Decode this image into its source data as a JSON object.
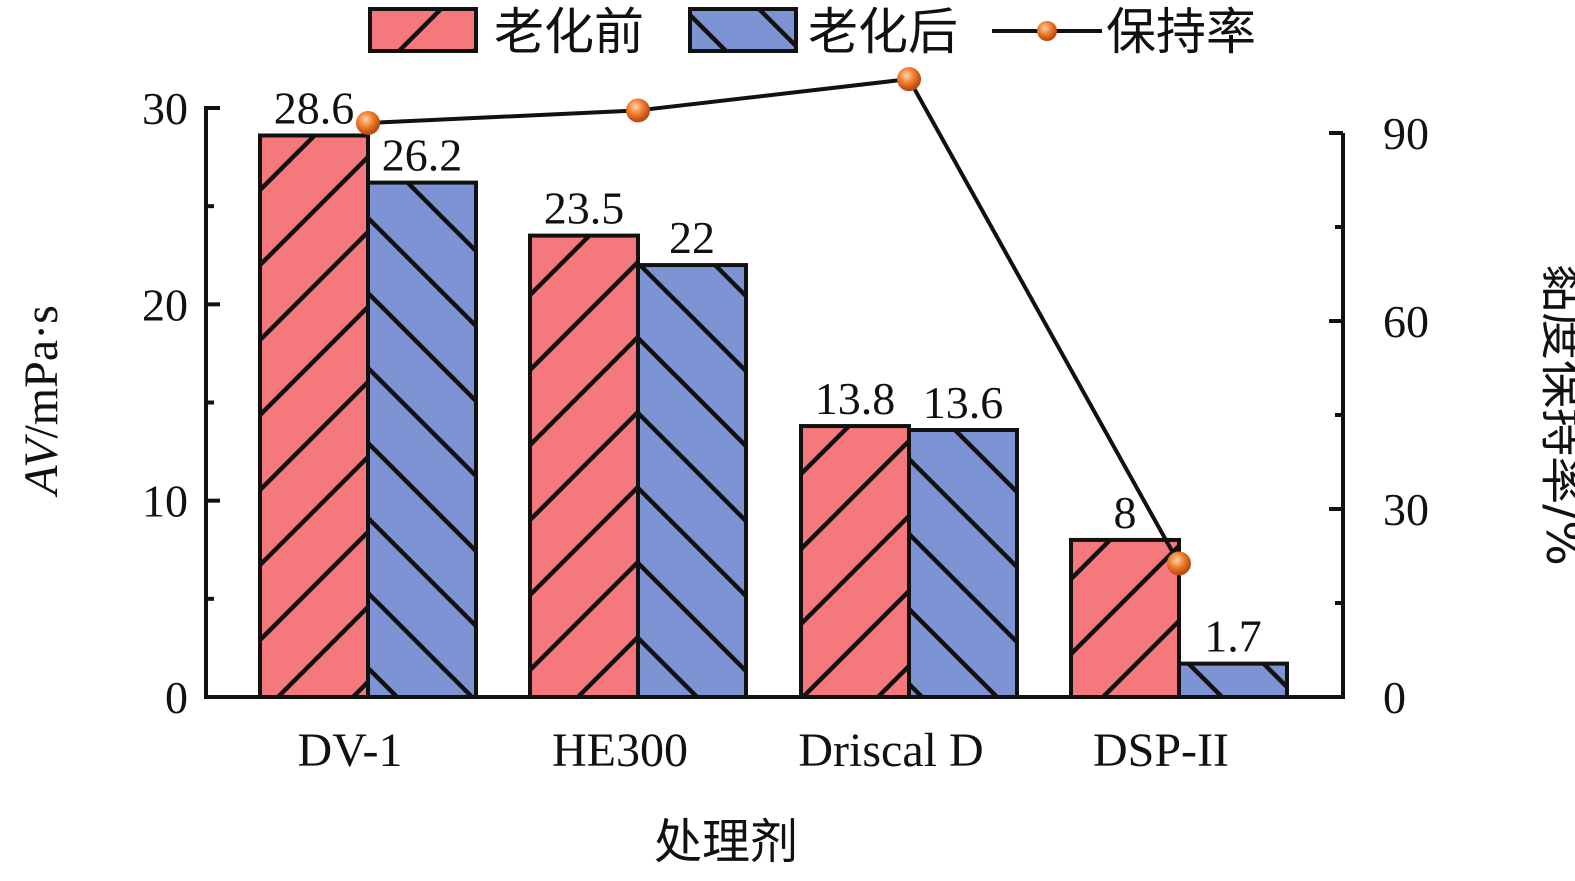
{
  "chart_data": {
    "type": "bar",
    "categories": [
      "DV-1",
      "HE300",
      "Driscal D",
      "DSP-II"
    ],
    "series": [
      {
        "name": "老化前",
        "values": [
          28.6,
          23.5,
          13.8,
          8
        ],
        "labels": [
          "28.6",
          "23.5",
          "13.8",
          "8"
        ],
        "color": "#f4787c",
        "hatch": "forward"
      },
      {
        "name": "老化后",
        "values": [
          26.2,
          22,
          13.6,
          1.7
        ],
        "labels": [
          "26.2",
          "22",
          "13.6",
          "1.7"
        ],
        "color": "#7d93d3",
        "hatch": "backward"
      }
    ],
    "line_series": {
      "name": "保持率",
      "values": [
        91.6,
        93.6,
        98.6,
        21.3
      ],
      "axis": "right",
      "marker_color": "#f07a2a",
      "line_color": "#111111"
    },
    "xlabel": "处理剂",
    "ylabel": {
      "italic": "AV",
      "rest": "/mPa·s"
    },
    "y2label": "黏度保持率/%",
    "ylim": [
      0,
      30
    ],
    "y2lim": [
      0,
      90
    ],
    "yticks": [
      0,
      10,
      20,
      30
    ],
    "yticks_labels": [
      "0",
      "10",
      "20",
      "30"
    ],
    "y2ticks": [
      0,
      30,
      60,
      90
    ],
    "y2ticks_labels": [
      "0",
      "30",
      "60",
      "90"
    ],
    "grid": false,
    "legend_position": "top"
  }
}
